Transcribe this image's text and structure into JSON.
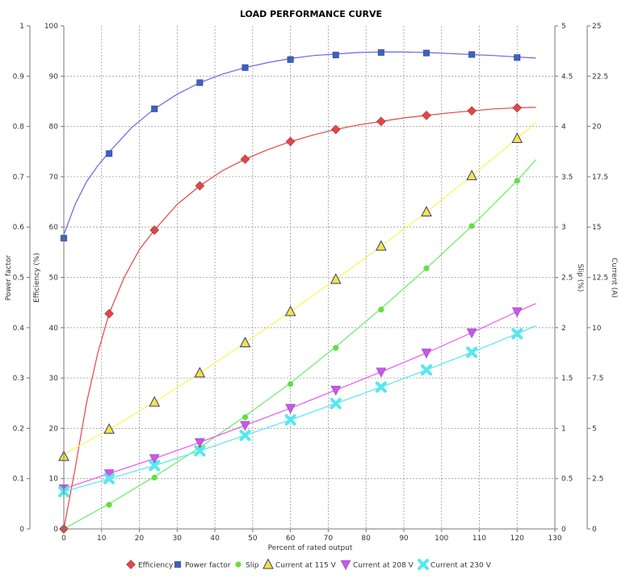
{
  "chart_data": {
    "type": "line",
    "title": "LOAD PERFORMANCE CURVE",
    "xlabel": "Percent of rated output",
    "xlim": [
      0,
      130
    ],
    "xticks": [
      0,
      10,
      20,
      30,
      40,
      50,
      60,
      70,
      80,
      90,
      100,
      110,
      120,
      130
    ],
    "grid": true,
    "legend_placement": "bottom",
    "axes": {
      "power_factor": {
        "label": "Power factor",
        "lim": [
          0,
          1
        ],
        "ticks": [
          "0",
          "0.1",
          "0.2",
          "0.3",
          "0.4",
          "0.5",
          "0.6",
          "0.7",
          "0.8",
          "0.9",
          "1"
        ]
      },
      "efficiency": {
        "label": "Efficiency (%)",
        "lim": [
          0,
          100
        ],
        "ticks": [
          "0",
          "10",
          "20",
          "30",
          "40",
          "50",
          "60",
          "70",
          "80",
          "90",
          "100"
        ]
      },
      "slip": {
        "label": "Slip (%)",
        "lim": [
          0,
          5
        ],
        "ticks": [
          "0",
          "0.5",
          "1",
          "1.5",
          "2",
          "2.5",
          "3",
          "3.5",
          "4",
          "4.5",
          "5"
        ]
      },
      "current": {
        "label": "Current (A)",
        "lim": [
          0,
          25
        ],
        "ticks": [
          "0",
          "2.5",
          "5",
          "7.5",
          "10",
          "12.5",
          "15",
          "17.5",
          "20",
          "22.5",
          "25"
        ]
      }
    },
    "series": [
      {
        "name": "Efficiency",
        "axis": "efficiency",
        "color": "#e84444",
        "marker": "diamond",
        "points": [
          [
            0,
            0
          ],
          [
            12,
            42.8
          ],
          [
            24,
            59.4
          ],
          [
            36,
            68.2
          ],
          [
            48,
            73.5
          ],
          [
            60,
            77.0
          ],
          [
            72,
            79.4
          ],
          [
            84,
            81.0
          ],
          [
            96,
            82.2
          ],
          [
            108,
            83.1
          ],
          [
            120,
            83.7
          ]
        ],
        "curve": [
          [
            0,
            0
          ],
          [
            3,
            12
          ],
          [
            6,
            25
          ],
          [
            9,
            35
          ],
          [
            12,
            42.8
          ],
          [
            16,
            50
          ],
          [
            20,
            55.5
          ],
          [
            24,
            59.4
          ],
          [
            30,
            64.5
          ],
          [
            36,
            68.2
          ],
          [
            42,
            71.2
          ],
          [
            48,
            73.5
          ],
          [
            54,
            75.4
          ],
          [
            60,
            77.0
          ],
          [
            66,
            78.3
          ],
          [
            72,
            79.4
          ],
          [
            78,
            80.3
          ],
          [
            84,
            81.0
          ],
          [
            90,
            81.7
          ],
          [
            96,
            82.2
          ],
          [
            102,
            82.7
          ],
          [
            108,
            83.1
          ],
          [
            114,
            83.5
          ],
          [
            120,
            83.7
          ],
          [
            125,
            83.8
          ]
        ]
      },
      {
        "name": "Power factor",
        "axis": "power_factor",
        "color": "#3a62c6",
        "line_color": "#6666ee",
        "marker": "square",
        "points": [
          [
            0,
            0.578
          ],
          [
            12,
            0.746
          ],
          [
            24,
            0.835
          ],
          [
            36,
            0.887
          ],
          [
            48,
            0.917
          ],
          [
            60,
            0.933
          ],
          [
            72,
            0.942
          ],
          [
            84,
            0.947
          ],
          [
            96,
            0.946
          ],
          [
            108,
            0.943
          ],
          [
            120,
            0.937
          ]
        ],
        "curve": [
          [
            0,
            0.585
          ],
          [
            3,
            0.645
          ],
          [
            6,
            0.69
          ],
          [
            9,
            0.722
          ],
          [
            12,
            0.749
          ],
          [
            18,
            0.798
          ],
          [
            24,
            0.835
          ],
          [
            30,
            0.864
          ],
          [
            36,
            0.887
          ],
          [
            42,
            0.904
          ],
          [
            48,
            0.917
          ],
          [
            54,
            0.927
          ],
          [
            60,
            0.935
          ],
          [
            66,
            0.941
          ],
          [
            72,
            0.944
          ],
          [
            78,
            0.947
          ],
          [
            84,
            0.948
          ],
          [
            90,
            0.948
          ],
          [
            96,
            0.947
          ],
          [
            102,
            0.945
          ],
          [
            108,
            0.943
          ],
          [
            114,
            0.941
          ],
          [
            120,
            0.938
          ],
          [
            125,
            0.936
          ]
        ]
      },
      {
        "name": "Slip",
        "axis": "slip",
        "color": "#66dd44",
        "line_color": "#66ee66",
        "marker": "circle",
        "points": [
          [
            12,
            0.24
          ],
          [
            24,
            0.51
          ],
          [
            36,
            0.8
          ],
          [
            48,
            1.11
          ],
          [
            60,
            1.44
          ],
          [
            72,
            1.8
          ],
          [
            84,
            2.18
          ],
          [
            96,
            2.59
          ],
          [
            108,
            3.01
          ],
          [
            120,
            3.46
          ]
        ],
        "curve": [
          [
            0,
            0
          ],
          [
            12,
            0.25
          ],
          [
            24,
            0.52
          ],
          [
            36,
            0.81
          ],
          [
            48,
            1.12
          ],
          [
            60,
            1.45
          ],
          [
            72,
            1.81
          ],
          [
            84,
            2.19
          ],
          [
            96,
            2.59
          ],
          [
            108,
            3.01
          ],
          [
            120,
            3.46
          ],
          [
            125,
            3.67
          ]
        ]
      },
      {
        "name": "Current at 115 V",
        "axis": "current",
        "color": "#f5e63a",
        "line_color": "#f8f855",
        "marker": "triangle-up",
        "points": [
          [
            0,
            3.6
          ],
          [
            12,
            4.95
          ],
          [
            24,
            6.3
          ],
          [
            36,
            7.75
          ],
          [
            48,
            9.25
          ],
          [
            60,
            10.8
          ],
          [
            72,
            12.4
          ],
          [
            84,
            14.05
          ],
          [
            96,
            15.75
          ],
          [
            108,
            17.55
          ],
          [
            120,
            19.4
          ]
        ],
        "curve": [
          [
            0,
            3.7
          ],
          [
            12,
            4.95
          ],
          [
            24,
            6.3
          ],
          [
            36,
            7.75
          ],
          [
            48,
            9.25
          ],
          [
            60,
            10.8
          ],
          [
            72,
            12.4
          ],
          [
            84,
            14.05
          ],
          [
            96,
            15.75
          ],
          [
            108,
            17.55
          ],
          [
            120,
            19.4
          ],
          [
            125,
            20.2
          ]
        ]
      },
      {
        "name": "Current at 208 V",
        "axis": "current",
        "color": "#cc55ee",
        "line_color": "#ee55ee",
        "marker": "triangle-down",
        "points": [
          [
            0,
            2.0
          ],
          [
            12,
            2.75
          ],
          [
            24,
            3.5
          ],
          [
            36,
            4.3
          ],
          [
            48,
            5.15
          ],
          [
            60,
            6.0
          ],
          [
            72,
            6.9
          ],
          [
            84,
            7.8
          ],
          [
            96,
            8.75
          ],
          [
            108,
            9.75
          ],
          [
            120,
            10.8
          ]
        ],
        "curve": [
          [
            0,
            2.0
          ],
          [
            12,
            2.75
          ],
          [
            24,
            3.5
          ],
          [
            36,
            4.3
          ],
          [
            48,
            5.15
          ],
          [
            60,
            6.0
          ],
          [
            72,
            6.9
          ],
          [
            84,
            7.8
          ],
          [
            96,
            8.75
          ],
          [
            108,
            9.75
          ],
          [
            120,
            10.8
          ],
          [
            125,
            11.2
          ]
        ]
      },
      {
        "name": "Current at 230 V",
        "axis": "current",
        "color": "#55e8ee",
        "line_color": "#55e8ee",
        "marker": "x",
        "points": [
          [
            0,
            1.85
          ],
          [
            12,
            2.5
          ],
          [
            24,
            3.15
          ],
          [
            36,
            3.88
          ],
          [
            48,
            4.65
          ],
          [
            60,
            5.42
          ],
          [
            72,
            6.23
          ],
          [
            84,
            7.05
          ],
          [
            96,
            7.9
          ],
          [
            108,
            8.78
          ],
          [
            120,
            9.7
          ]
        ],
        "curve": [
          [
            0,
            1.85
          ],
          [
            12,
            2.5
          ],
          [
            24,
            3.15
          ],
          [
            36,
            3.88
          ],
          [
            48,
            4.65
          ],
          [
            60,
            5.42
          ],
          [
            72,
            6.23
          ],
          [
            84,
            7.05
          ],
          [
            96,
            7.9
          ],
          [
            108,
            8.78
          ],
          [
            120,
            9.7
          ],
          [
            125,
            10.1
          ]
        ]
      }
    ]
  }
}
